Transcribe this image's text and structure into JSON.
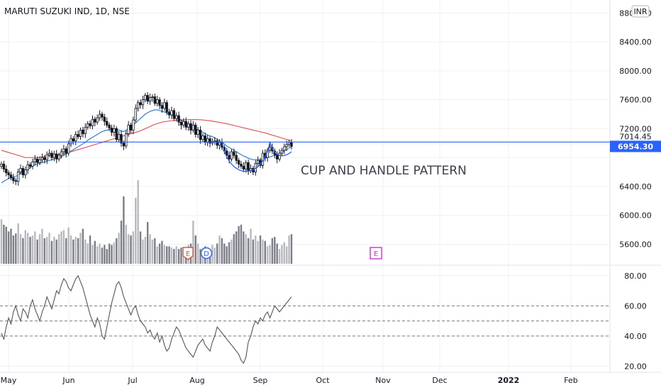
{
  "header": {
    "symbol_title": "MARUTI SUZUKI IND, 1D, NSE",
    "currency_badge": "INR"
  },
  "annotation": {
    "text": "CUP AND HANDLE PATTERN"
  },
  "colors": {
    "up": "#131722",
    "down": "#131722",
    "ma_fast": "#2f7fd8",
    "ma_slow": "#e05a5a",
    "hline": "#2962ff",
    "price_tag": "#2962ff",
    "cup_curve": "#2962ff",
    "rsi_line": "#555555",
    "earnings": "#e0533f",
    "dividend": "#2962ff",
    "future_earnings": "#cc33cc",
    "grid": "#eef0f3"
  },
  "price_pane": {
    "y_ticks": [
      "8800.00",
      "8400.00",
      "8000.00",
      "7600.00",
      "7200.00",
      "6400.00",
      "6000.00",
      "5600.00"
    ],
    "y_tick_values": [
      8800,
      8400,
      8000,
      7600,
      7200,
      6400,
      6000,
      5600
    ],
    "ylim": [
      5330,
      8980
    ],
    "hline_value": 7014.45,
    "hline_label": "7014.45",
    "last_price": 6954.3,
    "last_price_label": "6954.30"
  },
  "rsi_pane": {
    "y_ticks": [
      "80.00",
      "60.00",
      "40.00",
      "20.00"
    ],
    "y_tick_values": [
      80,
      60,
      40,
      20
    ],
    "ylim": [
      16,
      86
    ],
    "levels": [
      60,
      50,
      40
    ]
  },
  "x_axis": {
    "labels": [
      "May",
      "Jun",
      "Jul",
      "Aug",
      "Sep",
      "Oct",
      "Nov",
      "Dec",
      "2022",
      "Feb"
    ]
  },
  "events": [
    {
      "type": "earnings",
      "label": "E",
      "bar_index": 78
    },
    {
      "type": "dividend",
      "label": "D",
      "bar_index": 85
    },
    {
      "type": "future_earnings",
      "label": "E",
      "bar_index": 155
    }
  ],
  "chart_data": {
    "type": "candlestick",
    "title": "MARUTI SUZUKI IND, 1D, NSE",
    "x_start": "May",
    "bars": 122,
    "close": [
      6710,
      6640,
      6590,
      6560,
      6520,
      6480,
      6470,
      6600,
      6650,
      6560,
      6630,
      6700,
      6680,
      6740,
      6780,
      6730,
      6770,
      6800,
      6770,
      6840,
      6860,
      6800,
      6850,
      6780,
      6830,
      6880,
      6920,
      6860,
      6990,
      7060,
      7030,
      7120,
      7090,
      7180,
      7130,
      7220,
      7270,
      7240,
      7330,
      7290,
      7350,
      7400,
      7360,
      7300,
      7250,
      7210,
      7150,
      7200,
      7050,
      7120,
      7000,
      6960,
      7130,
      7250,
      7180,
      7320,
      7480,
      7560,
      7530,
      7600,
      7660,
      7580,
      7630,
      7640,
      7550,
      7600,
      7520,
      7480,
      7560,
      7430,
      7390,
      7450,
      7340,
      7380,
      7290,
      7250,
      7300,
      7220,
      7270,
      7180,
      7250,
      7120,
      7180,
      7050,
      7100,
      7010,
      7060,
      7000,
      7020,
      7030,
      6970,
      7010,
      6940,
      6890,
      6830,
      6780,
      6880,
      6830,
      6760,
      6710,
      6680,
      6640,
      6730,
      6620,
      6650,
      6600,
      6720,
      6760,
      6690,
      6860,
      6800,
      6900,
      6940,
      6890,
      6840,
      6780,
      6860,
      6900,
      6950,
      6980,
      7010,
      6954
    ],
    "volume": [
      66,
      58,
      55,
      48,
      52,
      42,
      45,
      60,
      44,
      38,
      50,
      46,
      40,
      42,
      48,
      36,
      44,
      52,
      38,
      40,
      46,
      34,
      40,
      36,
      44,
      48,
      50,
      38,
      54,
      42,
      36,
      40,
      38,
      46,
      52,
      36,
      30,
      42,
      28,
      34,
      26,
      30,
      24,
      28,
      22,
      30,
      28,
      32,
      38,
      46,
      64,
      100,
      58,
      44,
      42,
      48,
      98,
      124,
      48,
      36,
      40,
      62,
      44,
      36,
      38,
      26,
      30,
      34,
      28,
      26,
      26,
      24,
      22,
      26,
      22,
      24,
      24,
      22,
      28,
      30,
      64,
      42,
      30,
      22,
      24,
      26,
      22,
      20,
      28,
      24,
      30,
      42,
      38,
      30,
      26,
      32,
      36,
      44,
      48,
      56,
      58,
      48,
      44,
      38,
      52,
      36,
      42,
      34,
      42,
      36,
      34,
      26,
      28,
      38,
      40,
      30,
      22,
      28,
      32,
      26,
      42,
      44
    ],
    "ma_fast": [
      6450,
      6470,
      6490,
      6510,
      6520,
      6530,
      6540,
      6560,
      6580,
      6600,
      6620,
      6640,
      6660,
      6680,
      6700,
      6710,
      6720,
      6730,
      6740,
      6750,
      6760,
      6770,
      6780,
      6790,
      6800,
      6810,
      6830,
      6850,
      6870,
      6890,
      6910,
      6930,
      6950,
      6970,
      6990,
      7010,
      7040,
      7060,
      7080,
      7100,
      7120,
      7140,
      7160,
      7170,
      7180,
      7190,
      7190,
      7195,
      7190,
      7180,
      7170,
      7160,
      7180,
      7200,
      7220,
      7250,
      7280,
      7310,
      7340,
      7370,
      7400,
      7420,
      7440,
      7450,
      7460,
      7460,
      7450,
      7440,
      7430,
      7420,
      7400,
      7390,
      7370,
      7350,
      7340,
      7320,
      7300,
      7280,
      7260,
      7240,
      7220,
      7200,
      7180,
      7170,
      7150,
      7130,
      7110,
      7100,
      7090,
      7070,
      7050,
      7030,
      7010,
      6990,
      6960,
      6940,
      6920,
      6900,
      6880,
      6860,
      6840,
      6820,
      6810,
      6790,
      6780,
      6770,
      6770,
      6770,
      6770,
      6780,
      6790,
      6800,
      6810,
      6820,
      6830,
      6840,
      6850,
      6870,
      6890,
      6910,
      6930,
      6950
    ],
    "ma_slow": [
      6900,
      6890,
      6880,
      6870,
      6860,
      6850,
      6840,
      6830,
      6820,
      6810,
      6800,
      6800,
      6800,
      6800,
      6800,
      6800,
      6805,
      6810,
      6815,
      6820,
      6825,
      6830,
      6835,
      6840,
      6845,
      6850,
      6855,
      6860,
      6870,
      6880,
      6890,
      6900,
      6910,
      6920,
      6930,
      6940,
      6950,
      6960,
      6970,
      6980,
      6990,
      7000,
      7010,
      7020,
      7030,
      7040,
      7050,
      7060,
      7070,
      7080,
      7090,
      7100,
      7110,
      7120,
      7130,
      7140,
      7150,
      7160,
      7170,
      7185,
      7200,
      7215,
      7230,
      7245,
      7260,
      7270,
      7280,
      7290,
      7295,
      7300,
      7305,
      7310,
      7312,
      7315,
      7318,
      7320,
      7322,
      7324,
      7325,
      7326,
      7326,
      7326,
      7325,
      7323,
      7320,
      7316,
      7312,
      7308,
      7303,
      7298,
      7292,
      7286,
      7280,
      7274,
      7268,
      7260,
      7252,
      7244,
      7236,
      7228,
      7220,
      7212,
      7204,
      7196,
      7188,
      7180,
      7172,
      7164,
      7156,
      7148,
      7140,
      7130,
      7120,
      7110,
      7100,
      7090,
      7080,
      7070,
      7060,
      7050,
      7040,
      7030
    ],
    "rsi": [
      42,
      38,
      46,
      52,
      48,
      56,
      60,
      54,
      50,
      58,
      56,
      52,
      60,
      64,
      58,
      54,
      50,
      56,
      60,
      66,
      62,
      58,
      64,
      70,
      68,
      74,
      78,
      76,
      72,
      70,
      74,
      78,
      80,
      76,
      72,
      66,
      60,
      54,
      50,
      46,
      52,
      48,
      40,
      38,
      46,
      54,
      62,
      68,
      74,
      76,
      72,
      66,
      62,
      58,
      54,
      58,
      60,
      54,
      50,
      48,
      46,
      42,
      44,
      40,
      38,
      42,
      36,
      40,
      34,
      30,
      32,
      38,
      42,
      46,
      44,
      40,
      36,
      32,
      30,
      28,
      26,
      30,
      34,
      36,
      38,
      34,
      32,
      30,
      36,
      40,
      46,
      44,
      42,
      40,
      38,
      36,
      34,
      32,
      30,
      28,
      24,
      22,
      26,
      36,
      40,
      46,
      50,
      48,
      52,
      50,
      54,
      56,
      52,
      56,
      60,
      58,
      56,
      58,
      60,
      62,
      64,
      66
    ]
  }
}
